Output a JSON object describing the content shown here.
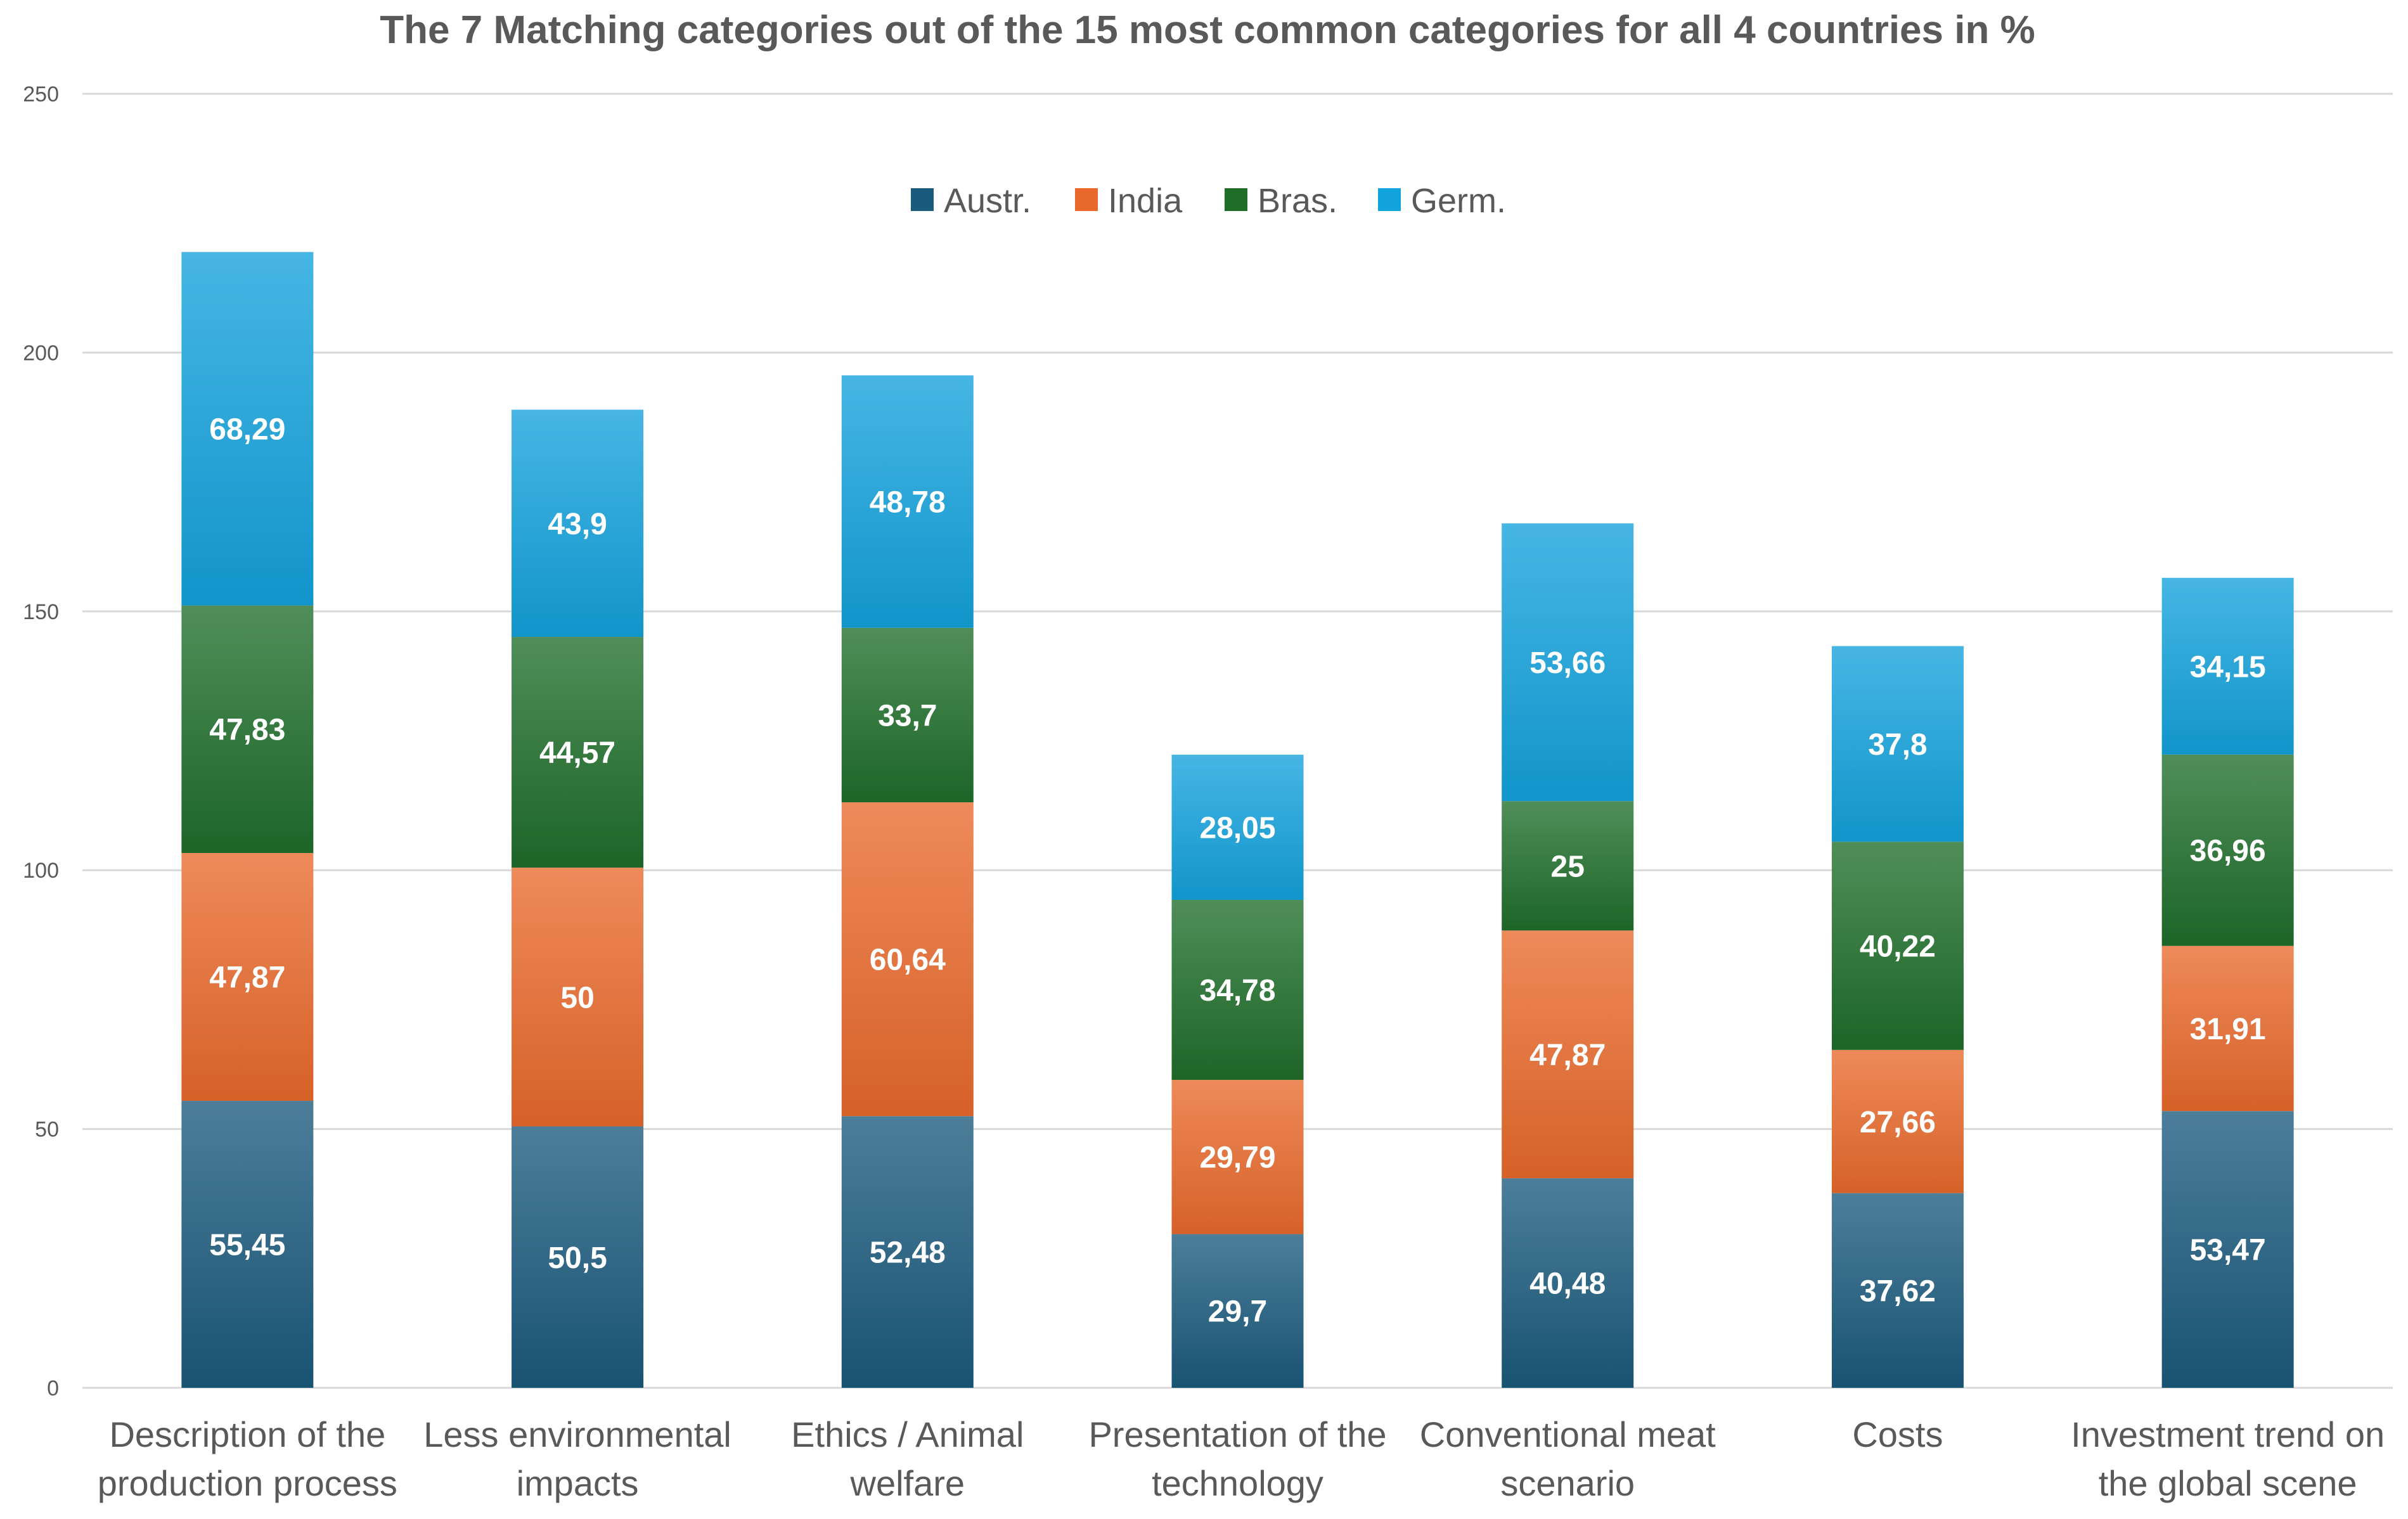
{
  "chart_data": {
    "type": "bar",
    "stacked": true,
    "title": "The 7 Matching categories out of the 15 most common categories for all 4 countries in %",
    "xlabel": "",
    "ylabel": "",
    "ylim": [
      0,
      250
    ],
    "yticks": [
      0,
      50,
      100,
      150,
      200,
      250
    ],
    "grid": true,
    "legend_position": "top",
    "categories": [
      [
        "Description of the",
        "production process"
      ],
      [
        "Less environmental",
        "impacts"
      ],
      [
        "Ethics / Animal",
        "welfare"
      ],
      [
        "Presentation of the",
        "technology"
      ],
      [
        "Conventional meat",
        "scenario"
      ],
      [
        "Costs"
      ],
      [
        "Investment trend on",
        "the global scene"
      ]
    ],
    "series": [
      {
        "name": "Austr.",
        "color": "#1a5a7c",
        "values": [
          55.45,
          50.5,
          52.48,
          29.7,
          40.48,
          37.62,
          53.47
        ],
        "labels": [
          "55,45",
          "50,5",
          "52,48",
          "29,7",
          "40,48",
          "37,62",
          "53,47"
        ]
      },
      {
        "name": "India",
        "color": "#e9692c",
        "values": [
          47.87,
          50,
          60.64,
          29.79,
          47.87,
          27.66,
          31.91
        ],
        "labels": [
          "47,87",
          "50",
          "60,64",
          "29,79",
          "47,87",
          "27,66",
          "31,91"
        ]
      },
      {
        "name": "Bras.",
        "color": "#1e6e2a",
        "values": [
          47.83,
          44.57,
          33.7,
          34.78,
          25,
          40.22,
          36.96
        ],
        "labels": [
          "47,83",
          "44,57",
          "33,7",
          "34,78",
          "25",
          "40,22",
          "36,96"
        ]
      },
      {
        "name": "Germ.",
        "color": "#12a2dc",
        "values": [
          68.29,
          43.9,
          48.78,
          28.05,
          53.66,
          37.8,
          34.15
        ],
        "labels": [
          "68,29",
          "43,9",
          "48,78",
          "28,05",
          "53,66",
          "37,8",
          "34,15"
        ]
      }
    ]
  }
}
